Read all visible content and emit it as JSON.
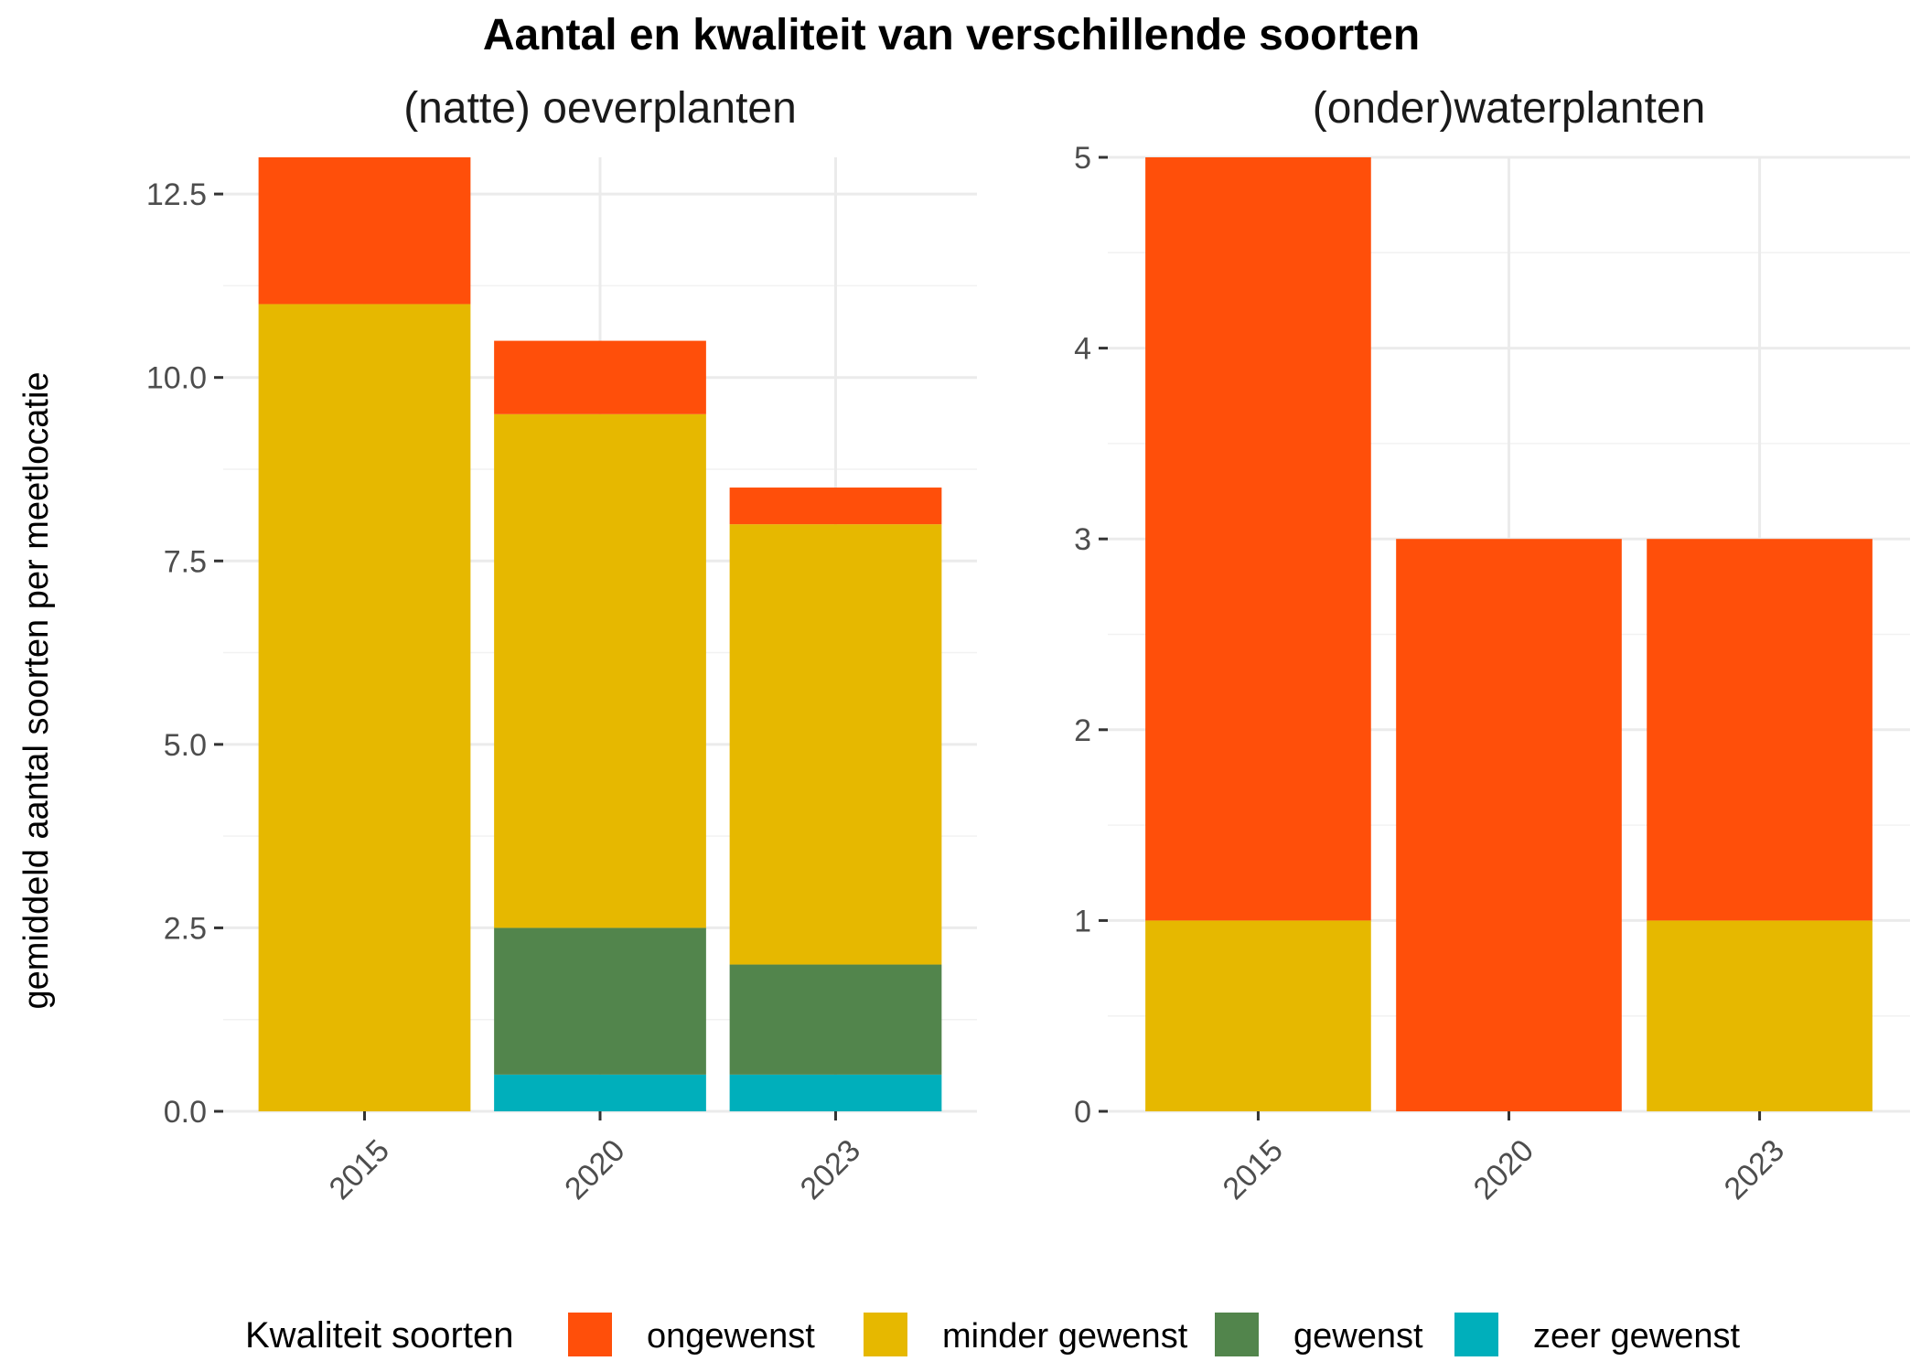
{
  "chart_data": {
    "type": "bar",
    "stacked": true,
    "title": "Aantal en kwaliteit van verschillende soorten",
    "ylabel": "gemiddeld aantal soorten per meetlocatie",
    "xlabel": "",
    "grid": true,
    "legend": {
      "title": "Kwaliteit soorten",
      "placement": "bottom",
      "entries": [
        {
          "name": "ongewenst",
          "color": "#FF4F0A"
        },
        {
          "name": "minder gewenst",
          "color": "#E6B800"
        },
        {
          "name": "gewenst",
          "color": "#52854C"
        },
        {
          "name": "zeer gewenst",
          "color": "#00AFBB"
        }
      ]
    },
    "stack_order": [
      "zeer gewenst",
      "gewenst",
      "minder gewenst",
      "ongewenst"
    ],
    "facets": [
      {
        "title": "(natte) oeverplanten",
        "categories": [
          "2015",
          "2020",
          "2023"
        ],
        "ylim": [
          0,
          13
        ],
        "yticks": [
          0,
          2.5,
          5,
          7.5,
          10,
          12.5
        ],
        "ytick_labels": [
          "0.0",
          "2.5",
          "5.0",
          "7.5",
          "10.0",
          "12.5"
        ],
        "series": [
          {
            "name": "ongewenst",
            "values": [
              2,
              1,
              0.5
            ]
          },
          {
            "name": "minder gewenst",
            "values": [
              11,
              7,
              6
            ]
          },
          {
            "name": "gewenst",
            "values": [
              0,
              2,
              1.5
            ]
          },
          {
            "name": "zeer gewenst",
            "values": [
              0,
              0.5,
              0.5
            ]
          }
        ]
      },
      {
        "title": "(onder)waterplanten",
        "categories": [
          "2015",
          "2020",
          "2023"
        ],
        "ylim": [
          0,
          5
        ],
        "yticks": [
          0,
          1,
          2,
          3,
          4,
          5
        ],
        "ytick_labels": [
          "0",
          "1",
          "2",
          "3",
          "4",
          "5"
        ],
        "series": [
          {
            "name": "ongewenst",
            "values": [
              4,
              3,
              2
            ]
          },
          {
            "name": "minder gewenst",
            "values": [
              1,
              0,
              1
            ]
          },
          {
            "name": "gewenst",
            "values": [
              0,
              0,
              0
            ]
          },
          {
            "name": "zeer gewenst",
            "values": [
              0,
              0,
              0
            ]
          }
        ]
      }
    ]
  }
}
